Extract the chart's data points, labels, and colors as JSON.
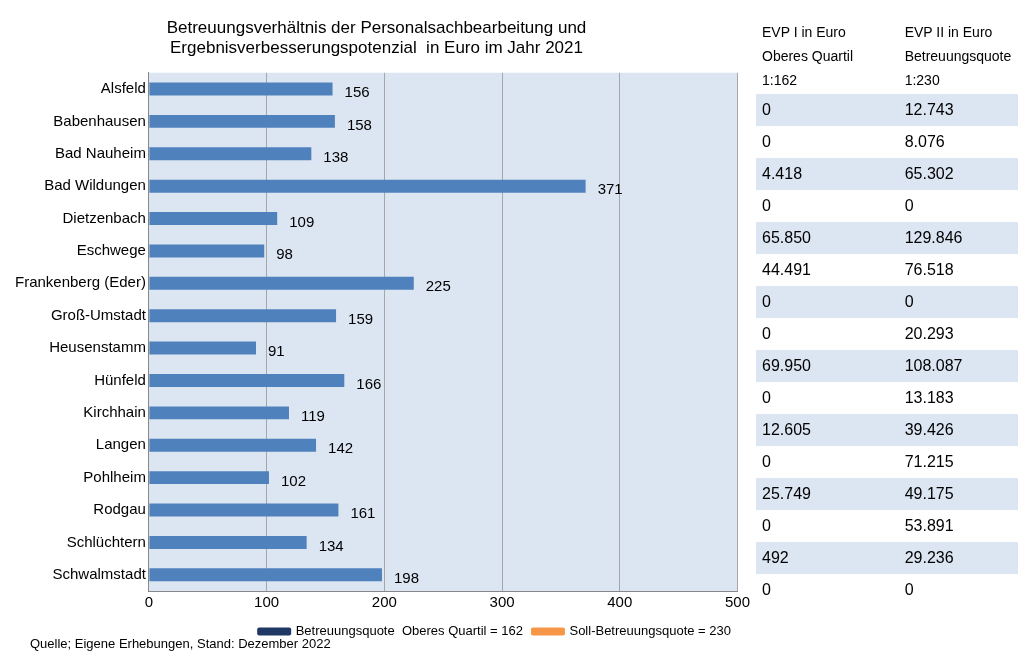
{
  "chart_data": [
    {
      "type": "bar",
      "orientation": "horizontal",
      "title": "Betreuungsverhältnis der Personalsachbearbeitung und\nErgebnisverbesserungspotenzial  in Euro im Jahr 2021",
      "categories": [
        "Alsfeld",
        "Babenhausen",
        "Bad Nauheim",
        "Bad Wildungen",
        "Dietzenbach",
        "Eschwege",
        "Frankenberg (Eder)",
        "Groß-Umstadt",
        "Heusenstamm",
        "Hünfeld",
        "Kirchhain",
        "Langen",
        "Pohlheim",
        "Rodgau",
        "Schlüchtern",
        "Schwalmstadt"
      ],
      "series": [
        {
          "type": "bar",
          "color": "#4f81bd",
          "values": [
            156,
            158,
            138,
            371,
            109,
            98,
            225,
            159,
            91,
            166,
            119,
            142,
            102,
            161,
            134,
            198
          ]
        },
        {
          "type": "line",
          "name": "Betreuungsquote  Oberes Quartil = 162",
          "color": "#1f3864",
          "values": [
            null,
            null,
            null,
            null,
            null,
            null,
            null,
            null,
            null,
            null,
            null,
            null,
            null,
            null,
            null,
            null
          ]
        },
        {
          "type": "line",
          "name": "Soll-Betreuungsquote = 230",
          "color": "#f79646",
          "values": [
            null,
            null,
            null,
            null,
            null,
            null,
            null,
            null,
            null,
            null,
            null,
            null,
            null,
            null,
            null,
            null
          ]
        }
      ],
      "xlim": [
        0,
        500
      ],
      "xticks": [
        0,
        100,
        200,
        300,
        400,
        500
      ],
      "grid": "x",
      "data_labels": true,
      "legend": "bottom",
      "annotations": [
        "Quelle; Eigene Erhebungen, Stand: Dezember 2022"
      ]
    },
    {
      "type": "other",
      "annotations": [
        "EVP I in Euro\nOberes Quartil\n1:162",
        "EVP II in Euro\nBetreuungsquote\n1:230",
        "0",
        "12.743",
        "0",
        "8.076",
        "4.418",
        "65.302",
        "0",
        "0",
        "65.850",
        "129.846",
        "44.491",
        "76.518",
        "0",
        "0",
        "0",
        "20.293",
        "69.950",
        "108.087",
        "0",
        "13.183",
        "12.605",
        "39.426",
        "0",
        "71.215",
        "25.749",
        "49.175",
        "0",
        "53.891",
        "492",
        "29.236",
        "0",
        "0"
      ]
    }
  ]
}
